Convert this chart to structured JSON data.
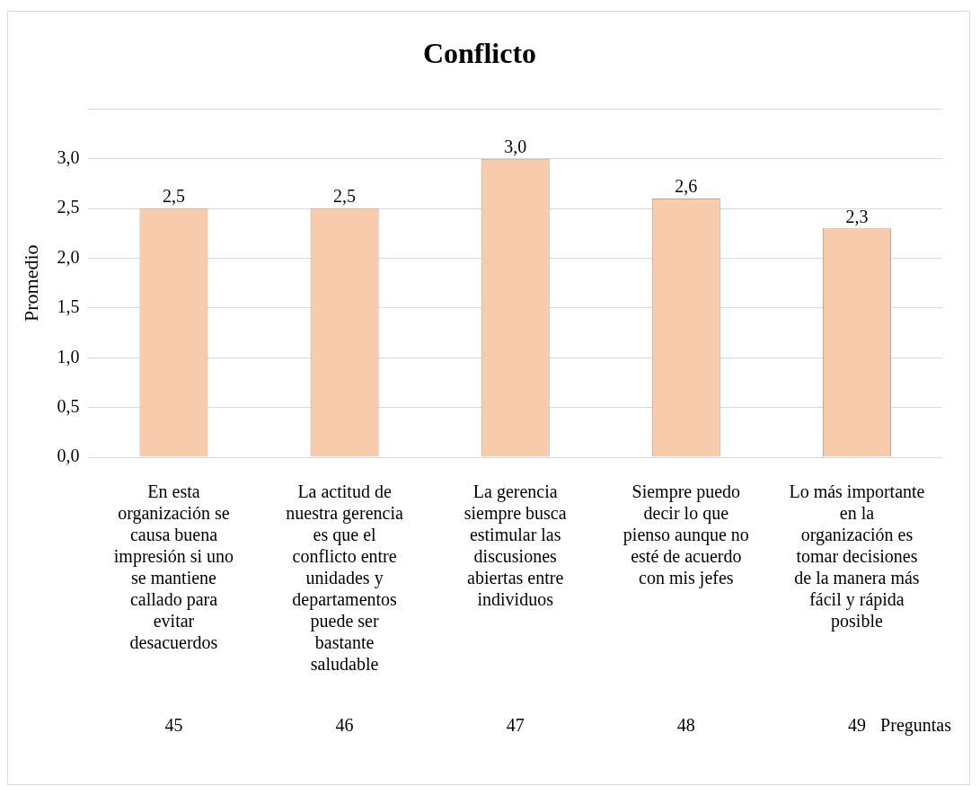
{
  "chart_data": {
    "type": "bar",
    "title": "Conflicto",
    "xlabel": "Preguntas",
    "ylabel": "Promedio",
    "categories": [
      "En esta organización se causa buena impresión si uno se mantiene callado para evitar desacuerdos",
      "La actitud de nuestra gerencia es que el conflicto entre unidades y departamentos puede ser bastante saludable",
      "La gerencia siempre busca estimular las discusiones abiertas entre individuos",
      "Siempre puedo decir lo que pienso aunque no esté de acuerdo con mis jefes",
      "Lo más importante en la organización es tomar decisiones de la manera más fácil y rápida posible"
    ],
    "values": [
      2.5,
      2.5,
      3.0,
      2.6,
      2.3
    ],
    "value_labels": [
      "2,5",
      "2,5",
      "3,0",
      "2,6",
      "2,3"
    ],
    "color": "#f8cbad",
    "ylim": [
      0,
      3.5
    ],
    "yticks": [
      {
        "value": 0,
        "label": "0,0"
      },
      {
        "value": 0.5,
        "label": "0,5"
      },
      {
        "value": 1,
        "label": "1,0"
      },
      {
        "value": 1.5,
        "label": "1,5"
      },
      {
        "value": 2,
        "label": "2,0"
      },
      {
        "value": 2.5,
        "label": "2,5"
      },
      {
        "value": 3,
        "label": "3,0"
      },
      {
        "value": 3.5,
        "label": null
      }
    ],
    "grid": "y",
    "legend": false,
    "annotations": [
      "45",
      "46",
      "47",
      "48",
      "49"
    ]
  }
}
